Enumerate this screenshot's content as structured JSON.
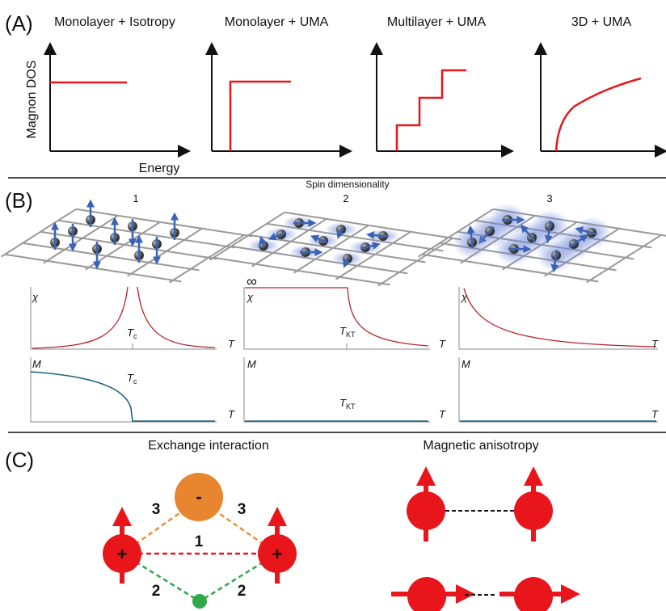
{
  "panel_a": {
    "label": "(A)",
    "titles": [
      "Monolayer + Isotropy",
      "Monolayer + UMA",
      "Multilayer + UMA",
      "3D + UMA"
    ],
    "y_axis_label": "Magnon DOS",
    "x_axis_label": "Energy"
  },
  "panel_b": {
    "label": "(B)",
    "axis_title": "Spin dimensionality",
    "dimensions": [
      "1",
      "2",
      "3"
    ],
    "susceptibility_symbol": "χ",
    "magnetization_symbol": "M",
    "temperature_symbol": "T",
    "critical_subscripts": [
      "c",
      "KT"
    ],
    "infinity": "∞"
  },
  "panel_c": {
    "label": "(C)",
    "exchange_title": "Exchange interaction",
    "anisotropy_title": "Magnetic anisotropy",
    "charges": [
      "-",
      "+",
      "+"
    ],
    "paths": [
      "3",
      "3",
      "1",
      "2",
      "2"
    ]
  }
}
